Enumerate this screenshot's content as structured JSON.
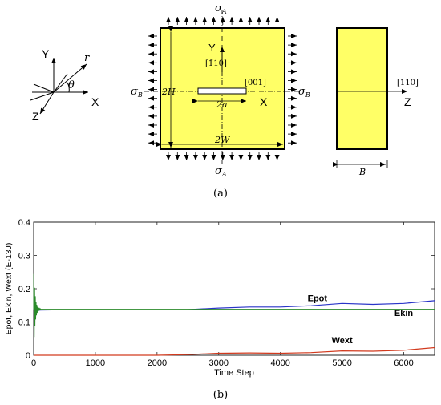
{
  "colors": {
    "plate_fill": "#ffff66",
    "epot_color": "#2a35c8",
    "ekin_color": "#2a8a2a",
    "wext_color": "#d23a1e",
    "axis_color": "#222222"
  },
  "icons": {
    "arrow": "arrow-icon",
    "crack": "crack-icon"
  },
  "panel_a": {
    "caption": "(a)",
    "coord": {
      "x_label": "X",
      "y_label": "Y",
      "z_label": "Z",
      "r_label": "r",
      "theta_label": "θ"
    },
    "front": {
      "sigma_a": "σ",
      "sigma_a_sub": "A",
      "sigma_b": "σ",
      "sigma_b_sub": "B",
      "y_label": "Y",
      "x_label": "X",
      "dir_y": "[1̄10]",
      "dir_x": "[001]",
      "height_label": "2H",
      "width_label": "2W",
      "crack_label": "2a"
    },
    "side": {
      "dir_z": "[110]",
      "z_label": "Z",
      "thickness_label": "B"
    }
  },
  "panel_b": {
    "caption": "(b)",
    "chart_data": {
      "type": "line",
      "xlabel": "Time Step",
      "ylabel": "Epot, Ekin, Wext (E-13J)",
      "xlim": [
        0,
        6500
      ],
      "ylim": [
        0,
        0.4
      ],
      "x_ticks": [
        0,
        1000,
        2000,
        3000,
        4000,
        5000,
        6000
      ],
      "y_ticks": [
        0,
        0.1,
        0.2,
        0.3,
        0.4
      ],
      "x_tick_labels": [
        "0",
        "1000",
        "2000",
        "3000",
        "4000",
        "5000",
        "6000"
      ],
      "y_tick_labels": [
        "0",
        "0.1",
        "0.2",
        "0.3",
        "0.4"
      ],
      "grid": false,
      "series": [
        {
          "name": "Epot",
          "x": [
            0,
            100,
            500,
            1000,
            1500,
            2000,
            2500,
            3000,
            3500,
            4000,
            4500,
            5000,
            5500,
            6000,
            6500
          ],
          "y": [
            0.138,
            0.136,
            0.137,
            0.137,
            0.137,
            0.137,
            0.137,
            0.142,
            0.145,
            0.145,
            0.149,
            0.156,
            0.153,
            0.156,
            0.164
          ]
        },
        {
          "name": "Ekin",
          "x": [
            0,
            100,
            500,
            1000,
            2000,
            3000,
            4000,
            5000,
            6000,
            6500
          ],
          "y": [
            0.138,
            0.138,
            0.138,
            0.138,
            0.138,
            0.138,
            0.138,
            0.138,
            0.138,
            0.138
          ]
        },
        {
          "name": "Wext",
          "x": [
            0,
            1000,
            2000,
            2500,
            3000,
            3500,
            4000,
            4500,
            5000,
            5500,
            6000,
            6500
          ],
          "y": [
            0.0,
            0.0,
            0.0,
            0.002,
            0.006,
            0.007,
            0.006,
            0.008,
            0.013,
            0.012,
            0.015,
            0.023
          ]
        }
      ]
    }
  }
}
